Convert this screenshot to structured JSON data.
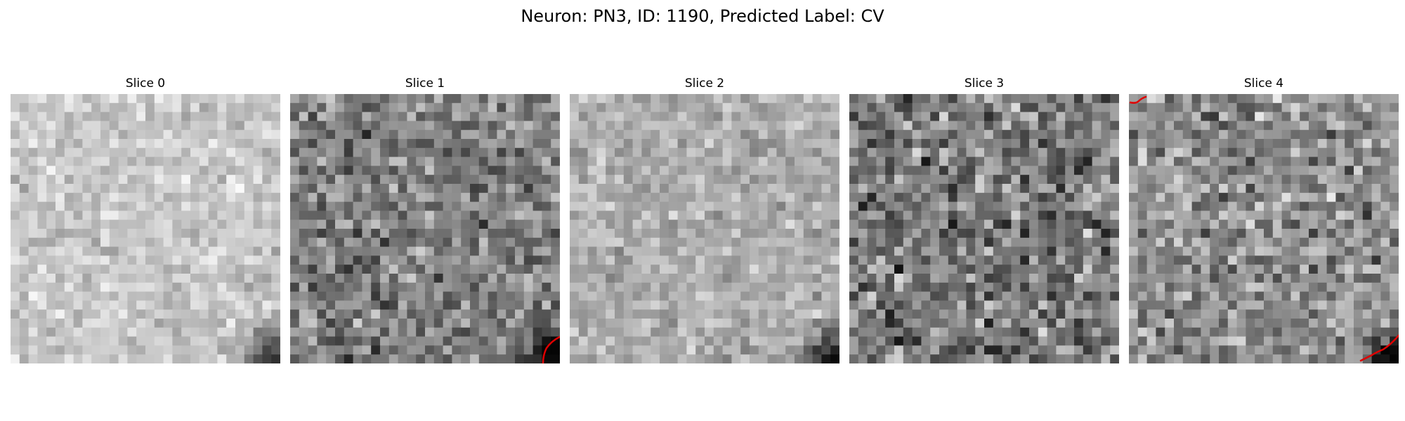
{
  "figure": {
    "title": "Neuron: PN3, ID: 1190, Predicted Label: CV",
    "grid_size": 30,
    "trace_color": "#e00000"
  },
  "panels": [
    {
      "label": "Slice 0",
      "base_level": 0.78,
      "contrast": 0.09,
      "dark_corner": "bottom-right",
      "trace": "none"
    },
    {
      "label": "Slice 1",
      "base_level": 0.5,
      "contrast": 0.16,
      "dark_corner": "bottom-right",
      "trace": "bottom-right"
    },
    {
      "label": "Slice 2",
      "base_level": 0.68,
      "contrast": 0.1,
      "dark_corner": "bottom-right",
      "trace": "none"
    },
    {
      "label": "Slice 3",
      "base_level": 0.48,
      "contrast": 0.19,
      "dark_corner": "none",
      "trace": "none"
    },
    {
      "label": "Slice 4",
      "base_level": 0.55,
      "contrast": 0.17,
      "dark_corner": "bottom-right",
      "trace": "top-left and bottom-right"
    }
  ]
}
